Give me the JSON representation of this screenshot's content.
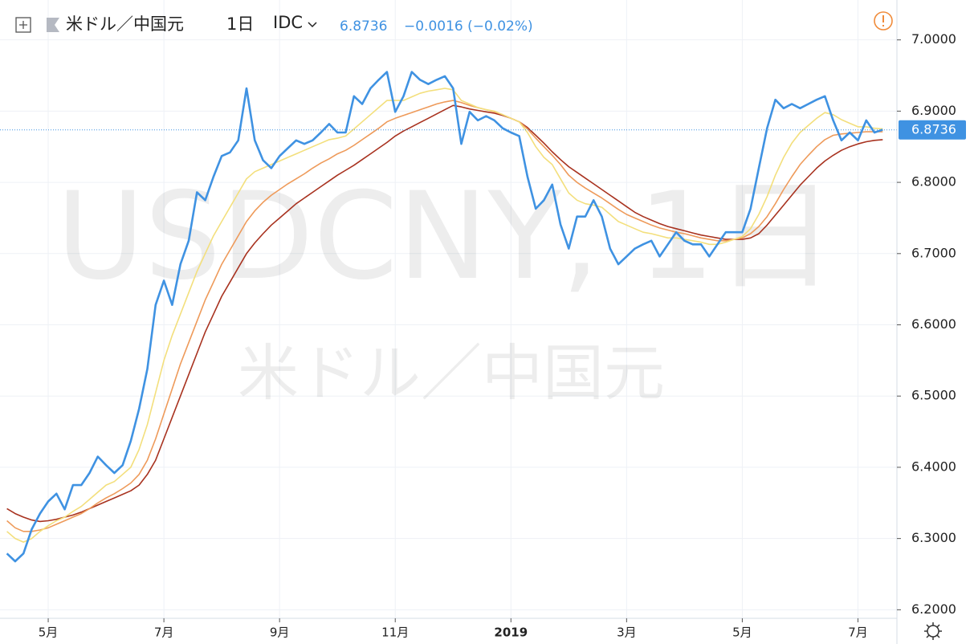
{
  "chart_data": {
    "type": "line",
    "title": "米ドル／中国元",
    "interval": "1日",
    "source": "IDC",
    "last_price": {
      "value": 6.8736,
      "label": "6.8736"
    },
    "change": "−0.0016 (−0.02%)",
    "watermark": {
      "symbol": "USDCNY, 1日",
      "description": "米ドル／中国元"
    },
    "ylim": [
      6.188,
      7.056
    ],
    "yticks": [
      {
        "value": 6.2,
        "label": "6.2000"
      },
      {
        "value": 6.3,
        "label": "6.3000"
      },
      {
        "value": 6.4,
        "label": "6.4000"
      },
      {
        "value": 6.5,
        "label": "6.5000"
      },
      {
        "value": 6.6,
        "label": "6.6000"
      },
      {
        "value": 6.7,
        "label": "6.7000"
      },
      {
        "value": 6.8,
        "label": "6.8000"
      },
      {
        "value": 6.9,
        "label": "6.9000"
      },
      {
        "value": 7.0,
        "label": "7.0000"
      }
    ],
    "grid": true,
    "categories": [
      null,
      null,
      null,
      null,
      null,
      "5月",
      null,
      null,
      null,
      null,
      null,
      null,
      null,
      null,
      null,
      null,
      null,
      null,
      null,
      "7月",
      null,
      null,
      null,
      null,
      null,
      null,
      null,
      null,
      null,
      null,
      null,
      null,
      null,
      "9月",
      null,
      null,
      null,
      null,
      null,
      null,
      null,
      null,
      null,
      null,
      null,
      null,
      null,
      "11月",
      null,
      null,
      null,
      null,
      null,
      null,
      null,
      null,
      null,
      null,
      null,
      null,
      null,
      "2019",
      null,
      null,
      null,
      null,
      null,
      null,
      null,
      null,
      null,
      null,
      null,
      null,
      null,
      "3月",
      null,
      null,
      null,
      null,
      null,
      null,
      null,
      null,
      null,
      null,
      null,
      null,
      null,
      "5月",
      null,
      null,
      null,
      null,
      null,
      null,
      null,
      null,
      null,
      null,
      null,
      null,
      null,
      "7月",
      null,
      null,
      null
    ],
    "series": [
      {
        "color": "#a8321f",
        "values": [
          6.342,
          6.335,
          6.33,
          6.326,
          6.324,
          6.325,
          6.327,
          6.33,
          6.333,
          6.337,
          6.342,
          6.347,
          6.352,
          6.357,
          6.362,
          6.367,
          6.375,
          6.39,
          6.41,
          6.44,
          6.47,
          6.5,
          6.53,
          6.56,
          6.59,
          6.615,
          6.64,
          6.66,
          6.68,
          6.7,
          6.715,
          6.728,
          6.74,
          6.75,
          6.76,
          6.77,
          6.778,
          6.786,
          6.794,
          6.802,
          6.81,
          6.817,
          6.824,
          6.832,
          6.84,
          6.848,
          6.856,
          6.865,
          6.872,
          6.878,
          6.884,
          6.89,
          6.896,
          6.902,
          6.908,
          6.906,
          6.903,
          6.901,
          6.899,
          6.897,
          6.894,
          6.89,
          6.885,
          6.877,
          6.866,
          6.855,
          6.843,
          6.832,
          6.822,
          6.814,
          6.806,
          6.798,
          6.79,
          6.782,
          6.774,
          6.766,
          6.758,
          6.752,
          6.747,
          6.742,
          6.738,
          6.735,
          6.732,
          6.729,
          6.726,
          6.724,
          6.722,
          6.72,
          6.72,
          6.72,
          6.722,
          6.728,
          6.74,
          6.754,
          6.768,
          6.782,
          6.796,
          6.808,
          6.82,
          6.83,
          6.838,
          6.845,
          6.85,
          6.854,
          6.857,
          6.859,
          6.86
        ]
      },
      {
        "color": "#ee9a5a",
        "values": [
          6.325,
          6.315,
          6.31,
          6.31,
          6.312,
          6.315,
          6.32,
          6.325,
          6.33,
          6.335,
          6.342,
          6.35,
          6.357,
          6.363,
          6.37,
          6.378,
          6.39,
          6.41,
          6.44,
          6.475,
          6.51,
          6.545,
          6.575,
          6.605,
          6.635,
          6.66,
          6.685,
          6.705,
          6.725,
          6.745,
          6.76,
          6.772,
          6.782,
          6.79,
          6.798,
          6.805,
          6.812,
          6.82,
          6.827,
          6.833,
          6.84,
          6.845,
          6.852,
          6.86,
          6.868,
          6.876,
          6.885,
          6.89,
          6.894,
          6.898,
          6.902,
          6.906,
          6.91,
          6.913,
          6.915,
          6.912,
          6.908,
          6.905,
          6.902,
          6.899,
          6.895,
          6.89,
          6.885,
          6.875,
          6.862,
          6.85,
          6.838,
          6.825,
          6.81,
          6.8,
          6.792,
          6.785,
          6.778,
          6.77,
          6.762,
          6.755,
          6.75,
          6.745,
          6.74,
          6.736,
          6.733,
          6.73,
          6.728,
          6.725,
          6.722,
          6.72,
          6.718,
          6.718,
          6.72,
          6.722,
          6.728,
          6.738,
          6.752,
          6.77,
          6.79,
          6.808,
          6.825,
          6.838,
          6.85,
          6.86,
          6.866,
          6.868,
          6.869,
          6.87,
          6.871,
          6.871,
          6.871
        ]
      },
      {
        "color": "#f3df7c",
        "values": [
          6.31,
          6.3,
          6.295,
          6.3,
          6.31,
          6.318,
          6.325,
          6.33,
          6.338,
          6.345,
          6.355,
          6.365,
          6.375,
          6.38,
          6.39,
          6.4,
          6.425,
          6.46,
          6.505,
          6.55,
          6.585,
          6.615,
          6.645,
          6.675,
          6.7,
          6.725,
          6.745,
          6.765,
          6.785,
          6.805,
          6.815,
          6.82,
          6.825,
          6.83,
          6.835,
          6.84,
          6.845,
          6.85,
          6.855,
          6.86,
          6.862,
          6.865,
          6.875,
          6.885,
          6.895,
          6.905,
          6.915,
          6.915,
          6.915,
          6.92,
          6.925,
          6.928,
          6.93,
          6.932,
          6.93,
          6.915,
          6.91,
          6.905,
          6.902,
          6.9,
          6.895,
          6.89,
          6.885,
          6.87,
          6.85,
          6.835,
          6.825,
          6.805,
          6.785,
          6.775,
          6.77,
          6.768,
          6.765,
          6.755,
          6.745,
          6.74,
          6.735,
          6.73,
          6.728,
          6.725,
          6.722,
          6.722,
          6.72,
          6.718,
          6.716,
          6.713,
          6.713,
          6.716,
          6.72,
          6.724,
          6.735,
          6.755,
          6.78,
          6.81,
          6.835,
          6.855,
          6.87,
          6.88,
          6.89,
          6.898,
          6.895,
          6.888,
          6.883,
          6.878,
          6.878,
          6.876,
          6.875
        ]
      },
      {
        "color": "#3f92e2",
        "values": [
          6.279,
          6.268,
          6.279,
          6.313,
          6.335,
          6.352,
          6.363,
          6.341,
          6.375,
          6.375,
          6.392,
          6.415,
          6.403,
          6.392,
          6.403,
          6.437,
          6.482,
          6.538,
          6.628,
          6.662,
          6.628,
          6.685,
          6.718,
          6.786,
          6.775,
          6.808,
          6.837,
          6.842,
          6.859,
          6.932,
          6.859,
          6.831,
          6.82,
          6.837,
          6.848,
          6.859,
          6.854,
          6.859,
          6.87,
          6.882,
          6.87,
          6.87,
          6.921,
          6.91,
          6.932,
          6.944,
          6.955,
          6.899,
          6.921,
          6.955,
          6.944,
          6.938,
          6.944,
          6.949,
          6.932,
          6.854,
          6.899,
          6.887,
          6.893,
          6.887,
          6.876,
          6.87,
          6.865,
          6.808,
          6.763,
          6.775,
          6.797,
          6.741,
          6.707,
          6.752,
          6.752,
          6.775,
          6.752,
          6.707,
          6.685,
          6.696,
          6.707,
          6.713,
          6.718,
          6.696,
          6.713,
          6.73,
          6.718,
          6.713,
          6.713,
          6.696,
          6.713,
          6.73,
          6.73,
          6.73,
          6.763,
          6.82,
          6.876,
          6.916,
          6.904,
          6.91,
          6.904,
          6.91,
          6.916,
          6.921,
          6.887,
          6.859,
          6.87,
          6.859,
          6.887,
          6.87,
          6.874
        ]
      }
    ]
  }
}
